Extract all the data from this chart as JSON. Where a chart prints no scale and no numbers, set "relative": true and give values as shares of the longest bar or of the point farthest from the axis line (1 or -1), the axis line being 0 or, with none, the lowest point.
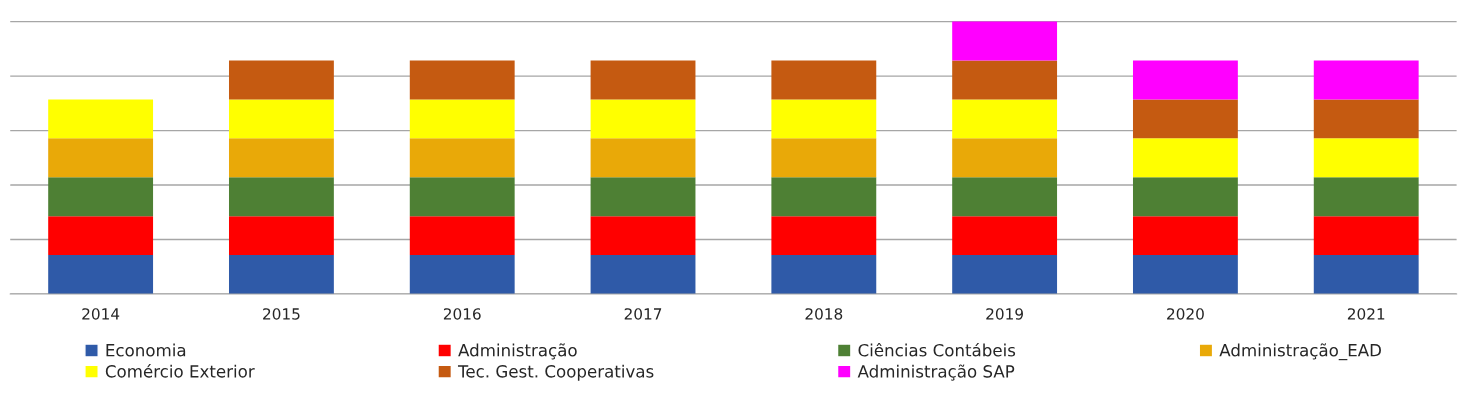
{
  "chart_data": {
    "type": "bar",
    "stacked": true,
    "relative": true,
    "grid": "y",
    "legend": "bottom",
    "categories": [
      "2014",
      "2015",
      "2016",
      "2017",
      "2018",
      "2019",
      "2020",
      "2021"
    ],
    "series": [
      {
        "name": "Economia",
        "color": "#2f5aa8",
        "values": [
          0.142857,
          0.142857,
          0.142857,
          0.142857,
          0.142857,
          0.142857,
          0.142857,
          0.142857
        ]
      },
      {
        "name": "Administração",
        "color": "#ff0000",
        "values": [
          0.142857,
          0.142857,
          0.142857,
          0.142857,
          0.142857,
          0.142857,
          0.142857,
          0.142857
        ]
      },
      {
        "name": "Ciências Contábeis",
        "color": "#4e8034",
        "values": [
          0.142857,
          0.142857,
          0.142857,
          0.142857,
          0.142857,
          0.142857,
          0.142857,
          0.142857
        ]
      },
      {
        "name": "Administração_EAD",
        "color": "#e9a908",
        "values": [
          0.142857,
          0.142857,
          0.142857,
          0.142857,
          0.142857,
          0.142857,
          null,
          null
        ]
      },
      {
        "name": "Comércio Exterior",
        "color": "#ffff00",
        "values": [
          0.142857,
          0.142857,
          0.142857,
          0.142857,
          0.142857,
          0.142857,
          0.142857,
          0.142857
        ]
      },
      {
        "name": "Tec. Gest. Cooperativas",
        "color": "#c55a11",
        "values": [
          null,
          0.142857,
          0.142857,
          0.142857,
          0.142857,
          0.142857,
          0.142857,
          0.142857
        ]
      },
      {
        "name": "Administração SAP",
        "color": "#ff00ff",
        "values": [
          null,
          null,
          null,
          null,
          null,
          0.142857,
          0.142857,
          0.142857
        ]
      }
    ]
  }
}
